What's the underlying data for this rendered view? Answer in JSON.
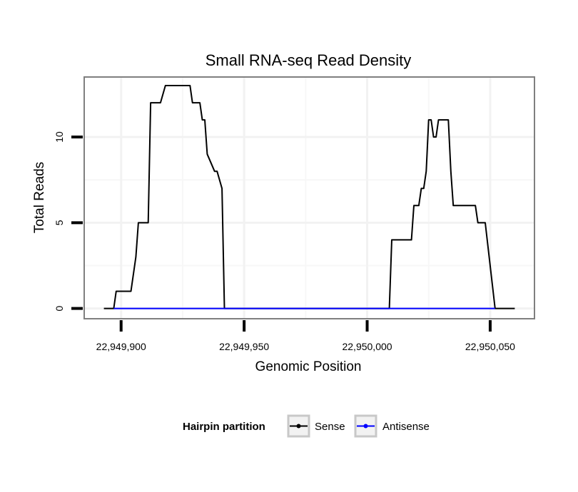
{
  "chart_data": {
    "type": "line",
    "title": "Small RNA-seq Read Density",
    "xlabel": "Genomic Position",
    "ylabel": "Total Reads",
    "xlim": [
      22949885,
      22950068
    ],
    "ylim": [
      -0.6,
      13.5
    ],
    "x_ticks": [
      22949900,
      22949950,
      22950000,
      22950050
    ],
    "x_tick_labels": [
      "22,949,900",
      "22,949,950",
      "22,950,000",
      "22,950,050"
    ],
    "y_ticks": [
      0,
      5,
      10
    ],
    "y_tick_labels": [
      "0",
      "5",
      "10"
    ],
    "grid": true,
    "legend": {
      "title": "Hairpin partition",
      "position": "bottom",
      "entries": [
        {
          "name": "Sense",
          "color": "#000000"
        },
        {
          "name": "Antisense",
          "color": "#0000ff"
        }
      ]
    },
    "series": [
      {
        "name": "Sense",
        "color": "#000000",
        "x": [
          22949893,
          22949897,
          22949898,
          22949904,
          22949906,
          22949907,
          22949911,
          22949912,
          22949913,
          22949916,
          22949918,
          22949928,
          22949929,
          22949932,
          22949933,
          22949934,
          22949935,
          22949938,
          22949939,
          22949941,
          22949942,
          22950009,
          22950010,
          22950018,
          22950019,
          22950021,
          22950022,
          22950023,
          22950024,
          22950025,
          22950026,
          22950027,
          22950028,
          22950029,
          22950030,
          22950033,
          22950034,
          22950035,
          22950044,
          22950045,
          22950047,
          22950048,
          22950052,
          22950060
        ],
        "y": [
          0,
          0,
          1,
          1,
          3,
          5,
          5,
          12,
          12,
          12,
          13,
          13,
          12,
          12,
          11,
          11,
          9,
          8,
          8,
          7,
          0,
          0,
          4,
          4,
          6,
          6,
          7,
          7,
          8,
          11,
          11,
          10,
          10,
          11,
          11,
          11,
          8,
          6,
          6,
          5,
          5,
          5,
          0,
          0
        ]
      },
      {
        "name": "Antisense",
        "color": "#0000ff",
        "x": [
          22949897,
          22950052
        ],
        "y": [
          0,
          0
        ]
      }
    ]
  }
}
